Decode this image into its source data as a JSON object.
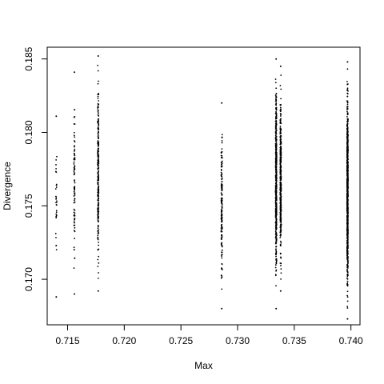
{
  "chart_data": {
    "type": "scatter",
    "title": "",
    "xlabel": "Max",
    "ylabel": "Divergence",
    "xlim": [
      0.7132,
      0.7408
    ],
    "ylim": [
      0.1669,
      0.1858
    ],
    "xticks": [
      0.715,
      0.72,
      0.725,
      0.73,
      0.735,
      0.74
    ],
    "xtick_labels": [
      "0.715",
      "0.720",
      "0.725",
      "0.730",
      "0.735",
      "0.740"
    ],
    "yticks": [
      0.17,
      0.175,
      0.18,
      0.185
    ],
    "ytick_labels": [
      "0.170",
      "0.175",
      "0.180",
      "0.185"
    ],
    "grid": false,
    "marker_color": "#000000",
    "clusters": [
      {
        "x": 0.714,
        "ymin": 0.1688,
        "ymax": 0.1811,
        "n": 30
      },
      {
        "x": 0.7156,
        "ymin": 0.169,
        "ymax": 0.1841,
        "n": 90
      },
      {
        "x": 0.7177,
        "ymin": 0.1692,
        "ymax": 0.1852,
        "n": 260
      },
      {
        "x": 0.7286,
        "ymin": 0.168,
        "ymax": 0.182,
        "n": 160
      },
      {
        "x": 0.7334,
        "ymin": 0.168,
        "ymax": 0.185,
        "n": 500
      },
      {
        "x": 0.7338,
        "ymin": 0.1692,
        "ymax": 0.1845,
        "n": 420
      },
      {
        "x": 0.7397,
        "ymin": 0.1673,
        "ymax": 0.1848,
        "n": 900
      }
    ]
  }
}
